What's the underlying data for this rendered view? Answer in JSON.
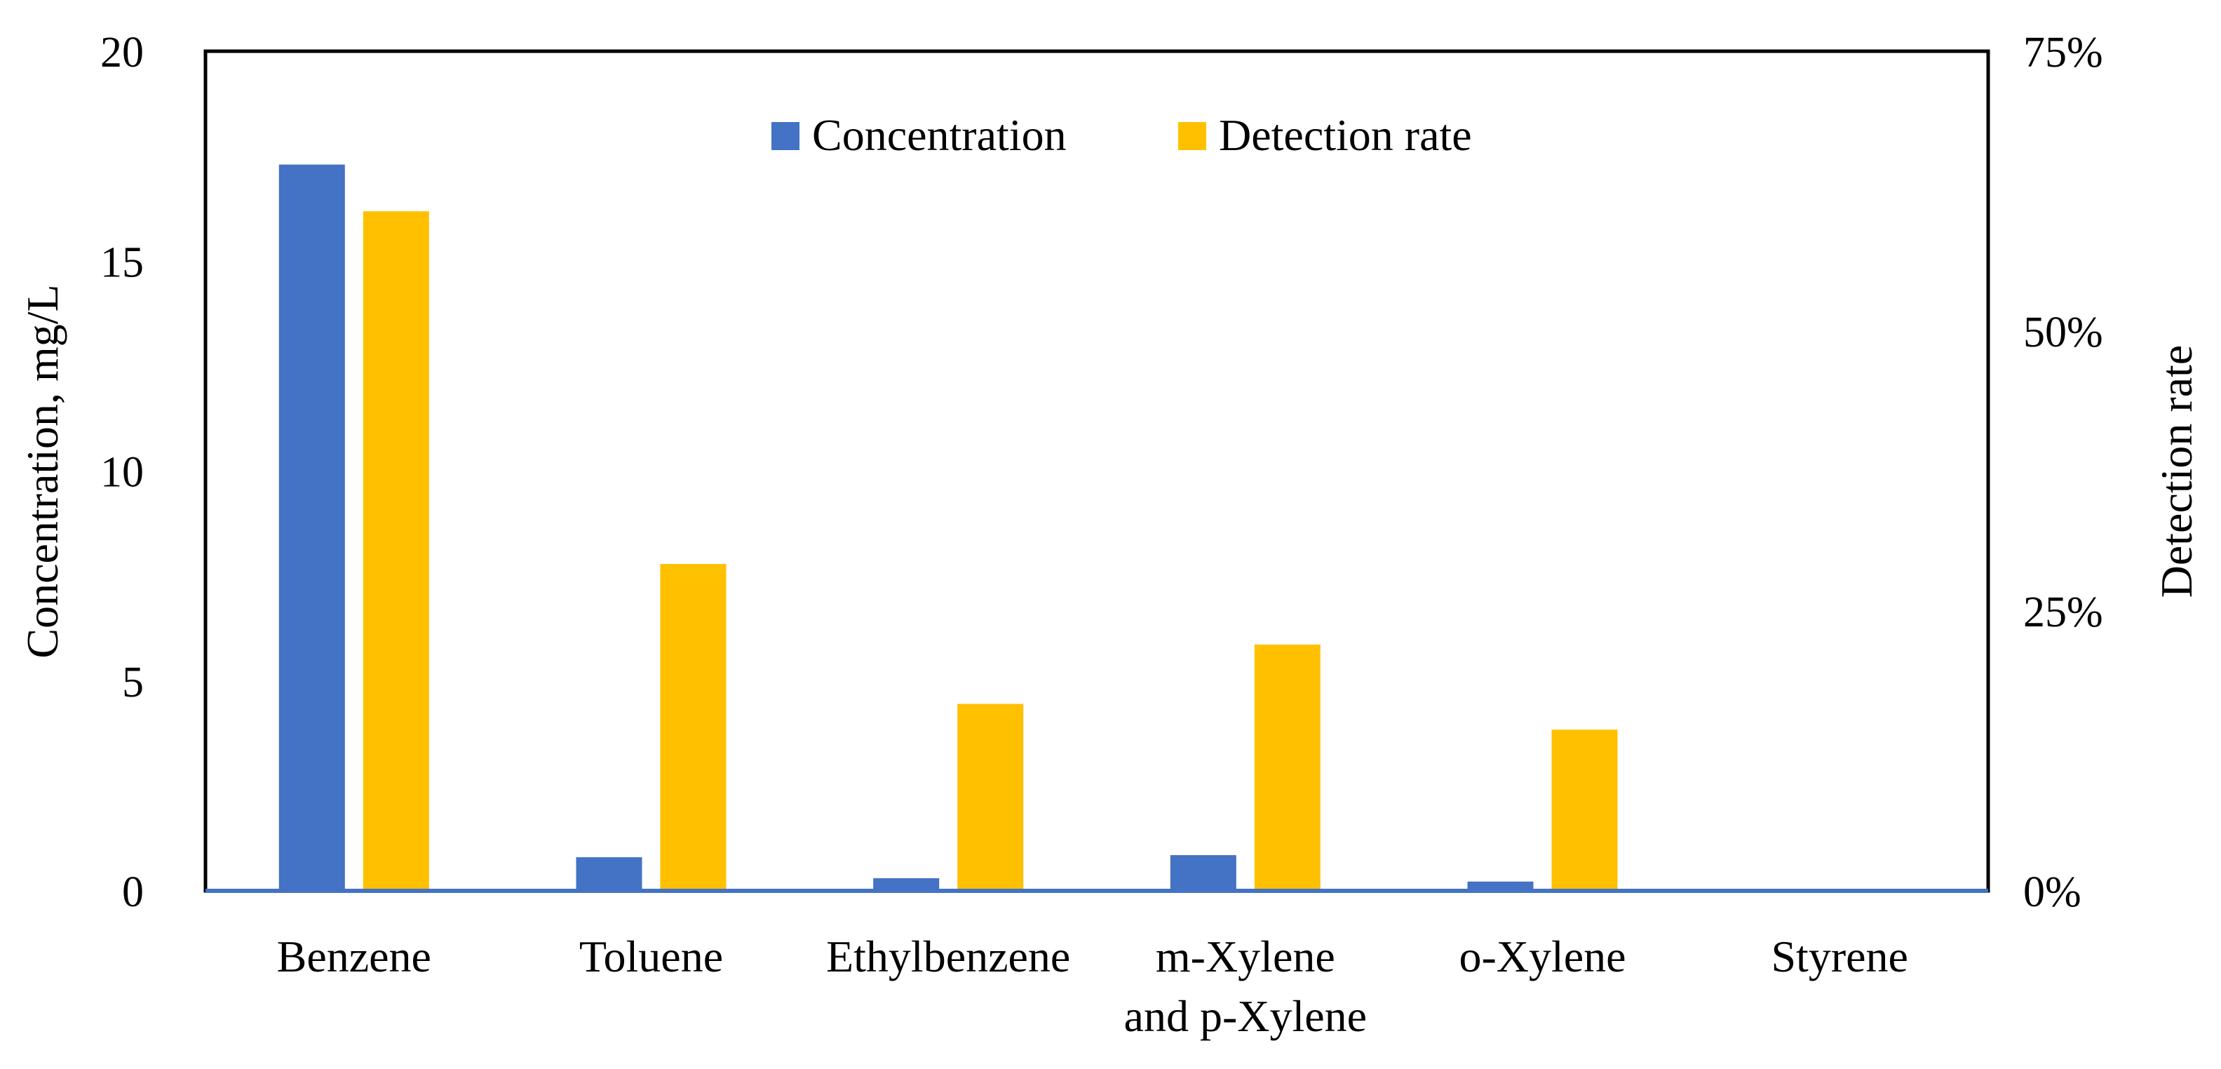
{
  "chart_data": {
    "type": "bar",
    "title": "",
    "categories": [
      [
        "Benzene"
      ],
      [
        "Toluene"
      ],
      [
        "Ethylbenzene"
      ],
      [
        "m-Xylene",
        "and p-Xylene"
      ],
      [
        "o-Xylene"
      ],
      [
        "Styrene"
      ]
    ],
    "series": [
      {
        "name": "Concentration",
        "axis": "left",
        "color": "#4472C4",
        "values": [
          17.3,
          0.8,
          0.3,
          0.85,
          0.22,
          0
        ]
      },
      {
        "name": "Detection rate",
        "axis": "right",
        "color": "#FFC000",
        "values": [
          0.607,
          0.292,
          0.167,
          0.22,
          0.144,
          0
        ]
      }
    ],
    "y_left": {
      "label": "Concentration, mg/L",
      "min": 0,
      "max": 20,
      "ticks": [
        "0",
        "5",
        "10",
        "15",
        "20"
      ]
    },
    "y_right": {
      "label": "Detection rate",
      "min": 0,
      "max": 0.75,
      "ticks": [
        "0%",
        "25%",
        "50%",
        "75%"
      ]
    },
    "legend": {
      "position": "top-center",
      "items": [
        "Concentration",
        "Detection rate"
      ]
    },
    "grid": false,
    "baseline_color": "#4472C4"
  }
}
